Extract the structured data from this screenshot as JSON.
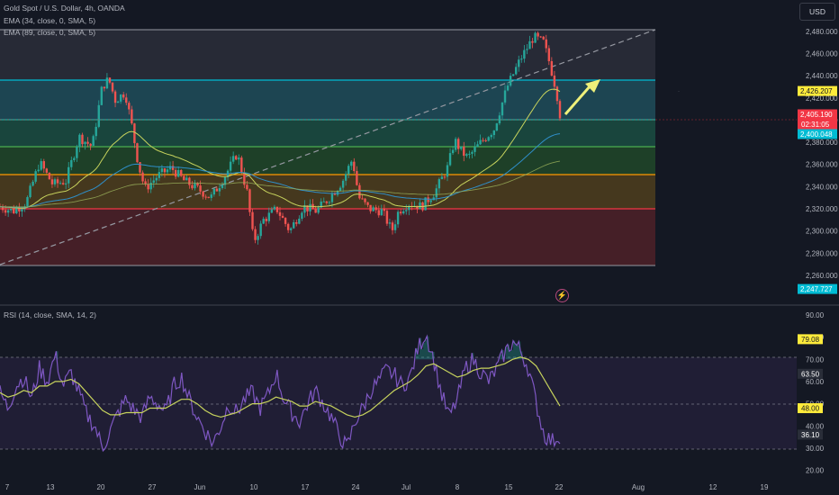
{
  "header": {
    "symbol_title": "Gold Spot / U.S. Dollar, 4h, OANDA",
    "ema1_label": "EMA (34, close, 0, SMA, 5)",
    "ema2_label": "EMA (89, close, 0, SMA, 5)",
    "currency_button": "USD"
  },
  "rsi_panel": {
    "title": "RSI (14, close, SMA, 14, 2)"
  },
  "icons": {
    "alert_icon": "lightning-bolt"
  },
  "colors": {
    "background": "#141823",
    "up_candle": "#26a69a",
    "down_candle": "#ef5350",
    "ema34": "#c7d35d",
    "ema89": "#2f8ec8",
    "rsi_line": "#7e57c2",
    "rsi_ma": "#c7d35d",
    "band_teal": "#00bcd4",
    "band_orange": "#ff9800",
    "band_red": "#f23645",
    "arrow": "#eef07a"
  },
  "chart_data": [
    {
      "type": "candlestick",
      "title": "Gold Spot / U.S. Dollar, 4h, OANDA",
      "y_ticks": [
        "2,480.000",
        "2,460.000",
        "2,440.000",
        "2,420.000",
        "2,400.000",
        "2,380.000",
        "2,360.000",
        "2,340.000",
        "2,320.000",
        "2,300.000",
        "2,280.000",
        "2,260.000"
      ],
      "x_ticks": [
        "7",
        "13",
        "20",
        "27",
        "Jun",
        "10",
        "17",
        "24",
        "Jul",
        "8",
        "15",
        "22",
        "Aug",
        "12",
        "19"
      ],
      "ylim": [
        2247,
        2492
      ],
      "horizontal_levels": [
        2485,
        2441,
        2408,
        2385,
        2357,
        2324,
        2278
      ],
      "trendline": {
        "from": [
          0,
          2278
        ],
        "to": [
          1,
          2485
        ]
      },
      "price_labels": [
        {
          "value": 2426.207,
          "text": "2,426.207",
          "color": "#ffeb3b"
        },
        {
          "value": 2405.19,
          "text": "2,405.190",
          "color": "#f23645"
        },
        {
          "countdown": "02:31:05"
        },
        {
          "value": 2400.048,
          "text": "2,400.048",
          "color": "#00bcd4"
        },
        {
          "value": 2247.727,
          "text": "2,247.727",
          "color": "#00bcd4"
        }
      ],
      "series": [
        {
          "name": "EMA (34, close, 0, SMA, 5)",
          "color": "#c7d35d"
        },
        {
          "name": "EMA (89, close, 0, SMA, 5)",
          "color": "#2f8ec8"
        }
      ],
      "close_path": [
        [
          0,
          2322
        ],
        [
          0.02,
          2318
        ],
        [
          0.04,
          2326
        ],
        [
          0.06,
          2362
        ],
        [
          0.08,
          2342
        ],
        [
          0.1,
          2345
        ],
        [
          0.12,
          2385
        ],
        [
          0.14,
          2376
        ],
        [
          0.155,
          2430
        ],
        [
          0.165,
          2437
        ],
        [
          0.175,
          2418
        ],
        [
          0.19,
          2425
        ],
        [
          0.2,
          2395
        ],
        [
          0.21,
          2360
        ],
        [
          0.22,
          2338
        ],
        [
          0.24,
          2350
        ],
        [
          0.26,
          2357
        ],
        [
          0.28,
          2345
        ],
        [
          0.3,
          2338
        ],
        [
          0.32,
          2330
        ],
        [
          0.34,
          2348
        ],
        [
          0.36,
          2370
        ],
        [
          0.375,
          2335
        ],
        [
          0.385,
          2290
        ],
        [
          0.4,
          2310
        ],
        [
          0.42,
          2320
        ],
        [
          0.44,
          2300
        ],
        [
          0.46,
          2322
        ],
        [
          0.48,
          2318
        ],
        [
          0.5,
          2330
        ],
        [
          0.52,
          2345
        ],
        [
          0.535,
          2365
        ],
        [
          0.545,
          2330
        ],
        [
          0.56,
          2320
        ],
        [
          0.58,
          2318
        ],
        [
          0.595,
          2300
        ],
        [
          0.605,
          2318
        ],
        [
          0.62,
          2325
        ],
        [
          0.64,
          2322
        ],
        [
          0.66,
          2335
        ],
        [
          0.68,
          2358
        ],
        [
          0.69,
          2382
        ],
        [
          0.7,
          2372
        ],
        [
          0.71,
          2366
        ],
        [
          0.73,
          2380
        ],
        [
          0.75,
          2392
        ],
        [
          0.77,
          2430
        ],
        [
          0.79,
          2455
        ],
        [
          0.81,
          2475
        ],
        [
          0.825,
          2470
        ],
        [
          0.835,
          2450
        ],
        [
          0.845,
          2425
        ],
        [
          0.85,
          2405
        ]
      ]
    },
    {
      "type": "line",
      "title": "RSI (14, close, SMA, 14, 2)",
      "y_ticks": [
        "90.00",
        "80.00",
        "70.00",
        "60.00",
        "50.00",
        "40.00",
        "30.00",
        "20.00"
      ],
      "ylim": [
        17,
        92
      ],
      "levels": [
        70,
        50,
        30
      ],
      "price_labels": [
        {
          "value": 79.08,
          "text": "79.08",
          "color": "#ffeb3b"
        },
        {
          "value": 63.5,
          "text": "63.50"
        },
        {
          "value": 48.0,
          "text": "48.00",
          "color": "#ffeb3b"
        },
        {
          "value": 36.1,
          "text": "36.10"
        }
      ],
      "series": [
        {
          "name": "RSI",
          "color": "#7e57c2",
          "values": [
            55,
            48,
            58,
            62,
            52,
            66,
            60,
            72,
            58,
            64,
            55,
            45,
            40,
            30,
            38,
            46,
            52,
            47,
            44,
            53,
            50,
            46,
            58,
            62,
            52,
            44,
            38,
            32,
            40,
            50,
            46,
            52,
            55,
            48,
            54,
            64,
            52,
            46,
            42,
            50,
            56,
            50,
            44,
            36,
            30,
            42,
            48,
            56,
            60,
            65,
            63,
            58,
            62,
            75,
            82,
            70,
            54,
            44,
            52,
            66,
            70,
            64,
            60,
            66,
            73,
            78,
            74,
            66,
            50,
            36,
            33,
            36
          ]
        },
        {
          "name": "RSI-based MA",
          "color": "#c7d35d",
          "values": [
            55,
            53,
            54,
            56,
            55,
            58,
            58,
            60,
            60,
            61,
            59,
            55,
            51,
            47,
            45,
            45,
            46,
            46,
            46,
            48,
            48,
            48,
            50,
            52,
            52,
            50,
            47,
            45,
            44,
            45,
            46,
            48,
            50,
            50,
            51,
            53,
            52,
            51,
            49,
            49,
            51,
            50,
            49,
            47,
            45,
            44,
            45,
            47,
            50,
            53,
            56,
            58,
            60,
            63,
            67,
            68,
            66,
            64,
            62,
            63,
            65,
            66,
            66,
            67,
            68,
            70,
            71,
            70,
            67,
            61,
            55,
            49
          ]
        }
      ]
    }
  ]
}
